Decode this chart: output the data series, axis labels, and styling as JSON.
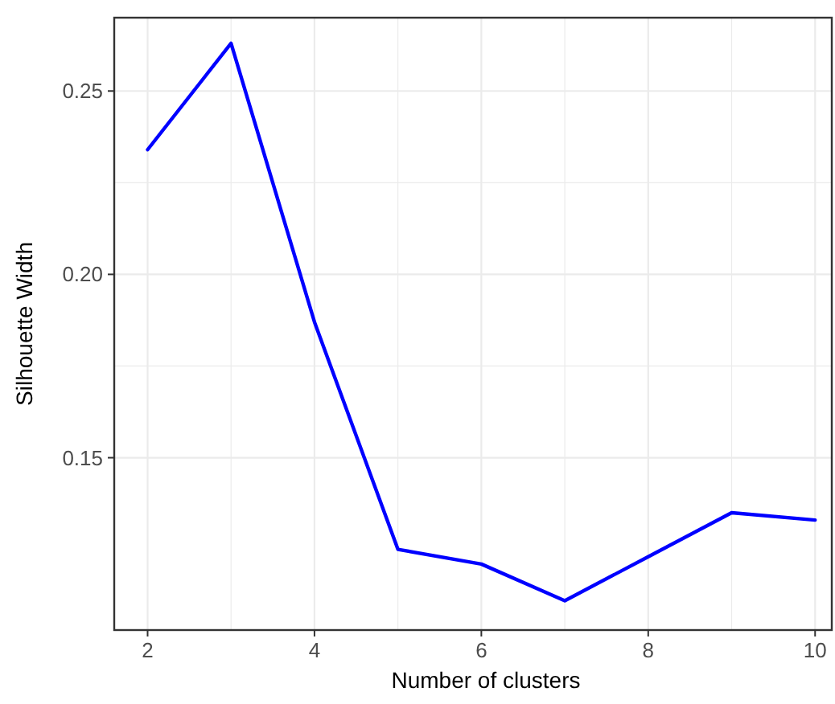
{
  "chart_data": {
    "type": "line",
    "xlabel": "Number of clusters",
    "ylabel": "Silhouette Width",
    "x": [
      2,
      3,
      4,
      5,
      6,
      7,
      8,
      9,
      10
    ],
    "series": [
      {
        "color": "#0000ff",
        "values": [
          0.234,
          0.263,
          0.187,
          0.125,
          0.121,
          0.111,
          0.123,
          0.135,
          0.133
        ]
      }
    ],
    "xlim": [
      1.6,
      10.2
    ],
    "xticks": [
      2,
      4,
      6,
      8,
      10
    ],
    "ylim": [
      0.103,
      0.27
    ],
    "yticks": [
      0.15,
      {
        "value": 0.2,
        "label": "0.20"
      },
      0.25
    ],
    "grid": true,
    "marker": "none",
    "line_style": "solid"
  }
}
